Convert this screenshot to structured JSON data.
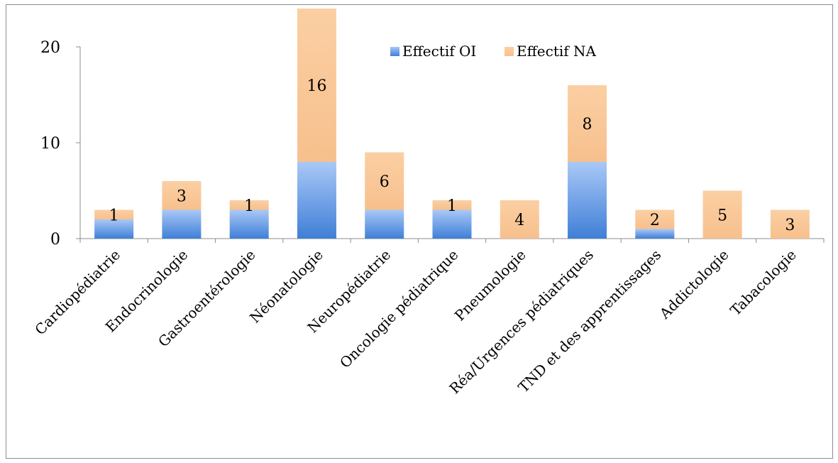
{
  "chart_data": {
    "type": "bar",
    "stacked": true,
    "categories": [
      "Cardiopédiatrie",
      "Endocrinologie",
      "Gastroentérologie",
      "Néonatologie",
      "Neuropédiatrie",
      "Oncologie pédiatrique",
      "Pneumologie",
      "Réa/Urgences pédiatriques",
      "TND et des apprentissages",
      "Addictologie",
      "Tabacologie"
    ],
    "series": [
      {
        "name": "Effectif OI",
        "values": [
          2,
          3,
          3,
          8,
          3,
          3,
          0,
          8,
          1,
          0,
          0
        ],
        "color": "#5b8fdb"
      },
      {
        "name": "Effectif NA",
        "values": [
          1,
          3,
          1,
          16,
          6,
          1,
          4,
          8,
          2,
          5,
          3
        ],
        "color": "#fac99a"
      }
    ],
    "data_labels": [
      "1",
      "3",
      "1",
      "16",
      "6",
      "1",
      "4",
      "8",
      "2",
      "5",
      "3"
    ],
    "yticks": [
      "0",
      "10",
      "20"
    ],
    "ylim": [
      0,
      20
    ],
    "grid": false,
    "legend_position": "top-right",
    "title": "",
    "xlabel": "",
    "ylabel": ""
  }
}
